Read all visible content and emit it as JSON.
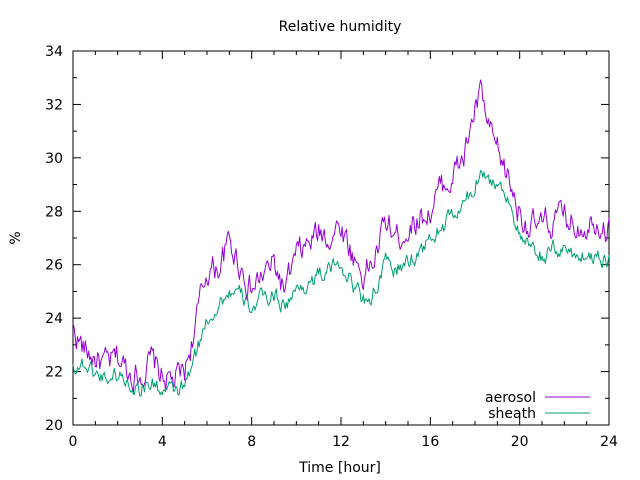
{
  "chart_data": {
    "type": "line",
    "title": "Relative humidity",
    "xlabel": "Time [hour]",
    "ylabel": "%",
    "xlim": [
      0,
      24
    ],
    "ylim": [
      20,
      34
    ],
    "x_ticks": [
      "0",
      "4",
      "8",
      "12",
      "16",
      "20",
      "24"
    ],
    "y_ticks": [
      "20",
      "22",
      "24",
      "26",
      "28",
      "30",
      "32",
      "34"
    ],
    "grid": false,
    "legend_position": "bottom-right",
    "series": [
      {
        "name": "aerosol",
        "color": "#9400d3",
        "x": [
          0,
          0.5,
          1,
          1.5,
          2,
          2.5,
          3,
          3.5,
          4,
          4.5,
          5,
          5.5,
          6,
          6.5,
          7,
          7.5,
          8,
          8.5,
          9,
          9.5,
          10,
          10.5,
          11,
          11.5,
          12,
          12.5,
          13,
          13.5,
          14,
          14.5,
          15,
          15.5,
          16,
          16.5,
          17,
          17.5,
          18,
          18.3,
          18.6,
          19,
          19.5,
          20,
          20.5,
          21,
          21.5,
          22,
          22.5,
          23,
          23.5,
          24
        ],
        "values": [
          23.6,
          22.8,
          22.5,
          22.2,
          22.5,
          22.0,
          21.9,
          22.4,
          21.8,
          21.6,
          22.0,
          23.8,
          25.8,
          25.9,
          26.8,
          26.0,
          25.0,
          25.6,
          26.0,
          25.0,
          26.3,
          26.7,
          27.2,
          27.1,
          27.5,
          26.4,
          25.6,
          26.2,
          27.6,
          27.0,
          27.4,
          27.8,
          28.0,
          28.9,
          29.3,
          30.0,
          31.8,
          32.4,
          31.0,
          30.2,
          29.2,
          28.0,
          27.4,
          27.4,
          27.6,
          27.8,
          27.5,
          27.6,
          27.8,
          27.3
        ]
      },
      {
        "name": "sheath",
        "color": "#009e73",
        "x": [
          0,
          0.5,
          1,
          1.5,
          2,
          2.5,
          3,
          3.5,
          4,
          4.5,
          5,
          5.5,
          6,
          6.5,
          7,
          7.5,
          8,
          8.5,
          9,
          9.5,
          10,
          10.5,
          11,
          11.5,
          12,
          12.5,
          13,
          13.5,
          14,
          14.5,
          15,
          15.5,
          16,
          16.5,
          17,
          17.5,
          18,
          18.3,
          18.6,
          19,
          19.5,
          20,
          20.5,
          21,
          21.5,
          22,
          22.5,
          23,
          23.5,
          24
        ],
        "values": [
          22.2,
          22.3,
          21.9,
          21.8,
          21.9,
          21.6,
          21.4,
          21.6,
          21.3,
          21.2,
          21.4,
          22.6,
          24.0,
          24.5,
          25.0,
          24.8,
          24.4,
          24.7,
          24.9,
          24.5,
          25.0,
          25.3,
          25.6,
          25.8,
          26.1,
          25.3,
          24.7,
          25.0,
          26.0,
          25.8,
          26.1,
          26.5,
          26.9,
          27.4,
          27.8,
          28.2,
          28.9,
          29.8,
          29.2,
          29.0,
          28.6,
          27.0,
          26.5,
          26.3,
          26.5,
          26.6,
          26.4,
          26.3,
          26.4,
          26.2
        ]
      }
    ]
  }
}
